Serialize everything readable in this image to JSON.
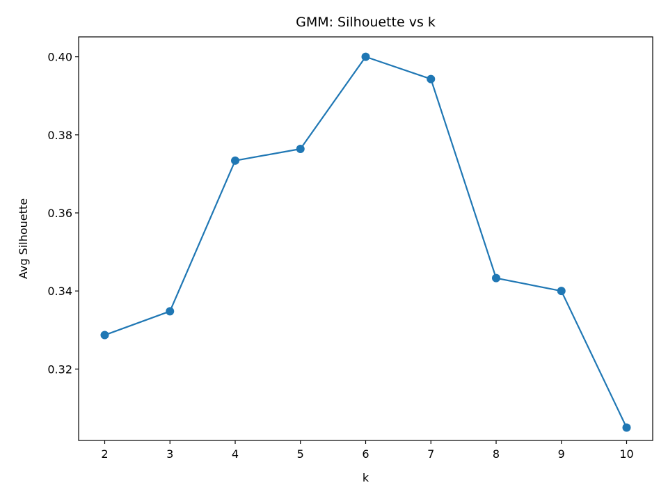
{
  "chart_data": {
    "type": "line",
    "title": "GMM: Silhouette vs k",
    "xlabel": "k",
    "ylabel": "Avg Silhouette",
    "x": [
      2,
      3,
      4,
      5,
      6,
      7,
      8,
      9,
      10
    ],
    "series": [
      {
        "values": [
          0.3287,
          0.3348,
          0.3734,
          0.3764,
          0.4,
          0.3943,
          0.3433,
          0.34,
          0.305
        ]
      }
    ],
    "xlim": [
      1.6,
      10.4
    ],
    "ylim": [
      0.3017,
      0.4051
    ],
    "xticks": [
      2,
      3,
      4,
      5,
      6,
      7,
      8,
      9,
      10
    ],
    "yticks": [
      0.32,
      0.34,
      0.36,
      0.38,
      0.4
    ],
    "ytick_labels": [
      "0.32",
      "0.34",
      "0.36",
      "0.38",
      "0.40"
    ],
    "grid": false,
    "marker": "circle",
    "colors": {
      "line": "#1f77b4",
      "marker": "#1f77b4",
      "axes": "#000000"
    }
  }
}
